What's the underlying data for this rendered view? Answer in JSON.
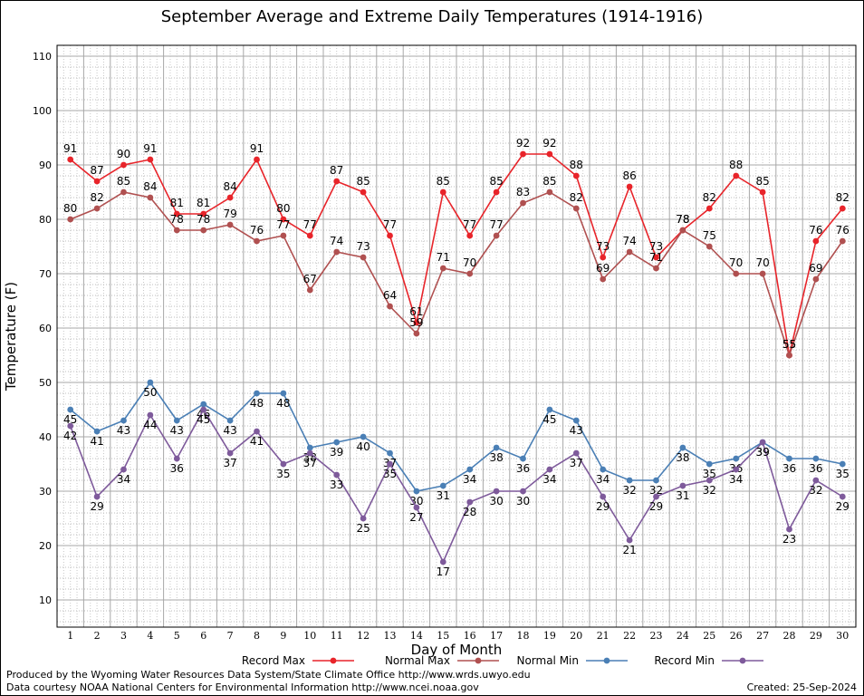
{
  "chart_data": {
    "type": "line",
    "title": "September Average and Extreme Daily Temperatures (1914-1916)",
    "xlabel": "Day of Month",
    "ylabel": "Temperature (F)",
    "x": [
      1,
      2,
      3,
      4,
      5,
      6,
      7,
      8,
      9,
      10,
      11,
      12,
      13,
      14,
      15,
      16,
      17,
      18,
      19,
      20,
      21,
      22,
      23,
      24,
      25,
      26,
      27,
      28,
      29,
      30
    ],
    "xlim": [
      0.5,
      30.5
    ],
    "ylim": [
      5,
      112
    ],
    "yticks": [
      10,
      20,
      30,
      40,
      50,
      60,
      70,
      80,
      90,
      100,
      110
    ],
    "grid": true,
    "legend_position": "bottom",
    "series": [
      {
        "name": "Record Max",
        "color": "#e8242a",
        "label_pos": "above",
        "values": [
          91,
          87,
          90,
          91,
          81,
          81,
          84,
          91,
          80,
          77,
          87,
          85,
          77,
          61,
          85,
          77,
          85,
          92,
          92,
          88,
          73,
          86,
          73,
          78,
          82,
          88,
          85,
          55,
          76,
          82
        ]
      },
      {
        "name": "Normal Max",
        "color": "#b05050",
        "label_pos": "above",
        "values": [
          80,
          82,
          85,
          84,
          78,
          78,
          79,
          76,
          77,
          67,
          74,
          73,
          64,
          59,
          71,
          70,
          77,
          83,
          85,
          82,
          69,
          74,
          71,
          78,
          75,
          70,
          70,
          55,
          69,
          76
        ]
      },
      {
        "name": "Normal Min",
        "color": "#4a7fb5",
        "label_pos": "below",
        "values": [
          45,
          41,
          43,
          50,
          43,
          46,
          43,
          48,
          48,
          38,
          39,
          40,
          37,
          30,
          31,
          34,
          38,
          36,
          45,
          43,
          34,
          32,
          32,
          38,
          35,
          36,
          39,
          36,
          36,
          35
        ]
      },
      {
        "name": "Record Min",
        "color": "#7e5a9b",
        "label_pos": "mixed",
        "values": [
          42,
          29,
          34,
          44,
          36,
          45,
          37,
          41,
          35,
          37,
          33,
          25,
          35,
          27,
          17,
          28,
          30,
          30,
          34,
          37,
          29,
          21,
          29,
          31,
          32,
          34,
          39,
          23,
          32,
          29
        ]
      }
    ]
  },
  "footer": {
    "produced_by": "Produced by the Wyoming Water Resources Data System/State Climate Office http://www.wrds.uwyo.edu",
    "courtesy": "Data courtesy NOAA National Centers for Environmental Information http://www.ncei.noaa.gov",
    "created": "Created:  25-Sep-2024"
  }
}
